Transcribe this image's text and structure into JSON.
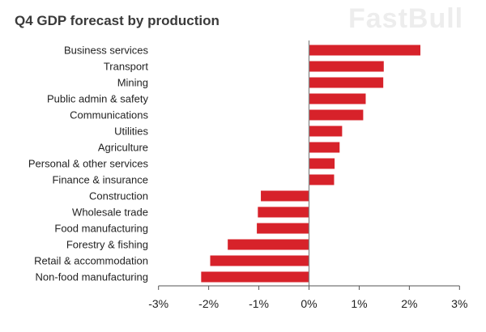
{
  "chart_data": {
    "type": "bar",
    "orientation": "horizontal",
    "title": "Q4 GDP forecast by production",
    "categories": [
      "Business services",
      "Transport",
      "Mining",
      "Public admin & safety",
      "Communications",
      "Utilities",
      "Agriculture",
      "Personal & other services",
      "Finance & insurance",
      "Construction",
      "Wholesale trade",
      "Food manufacturing",
      "Forestry & fishing",
      "Retail & accommodation",
      "Non-food manufacturing"
    ],
    "values": [
      2.22,
      1.49,
      1.48,
      1.13,
      1.08,
      0.66,
      0.61,
      0.51,
      0.5,
      -0.96,
      -1.02,
      -1.04,
      -1.62,
      -1.97,
      -2.15
    ],
    "xlabel": "",
    "ylabel": "",
    "xlim": [
      -3,
      3
    ],
    "ticks": [
      -3,
      -2,
      -1,
      0,
      1,
      2,
      3
    ],
    "tick_labels": [
      "-3%",
      "-2%",
      "-1%",
      "0%",
      "1%",
      "2%",
      "3%"
    ],
    "grid": false,
    "bar_color": "#d7222a",
    "watermark": "FastBull"
  }
}
